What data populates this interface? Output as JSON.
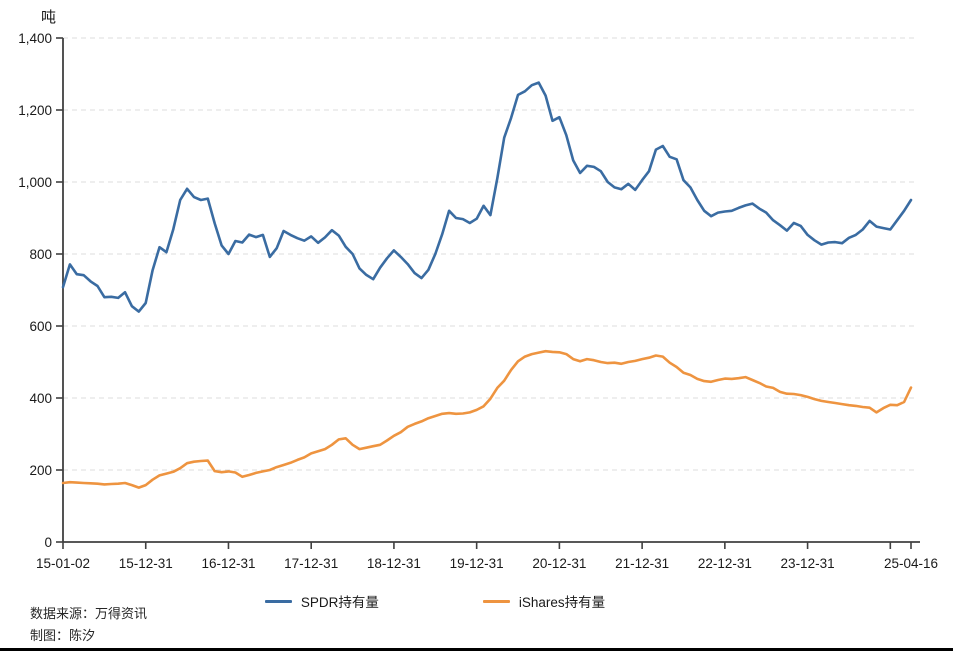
{
  "figure": {
    "unit": "吨",
    "source_line1": "数据来源：万得资讯",
    "source_line2": "制图：陈汐"
  },
  "legend": [
    {
      "label": "SPDR持有量",
      "color": "#3A6CA2"
    },
    {
      "label": "iShares持有量",
      "color": "#EE9440"
    }
  ],
  "chart_data": {
    "type": "line",
    "title": "",
    "xlabel": "",
    "ylabel": "吨",
    "ylim": [
      0,
      1400
    ],
    "grid": "horizontal-dashed",
    "legend_position": "bottom-center",
    "axis_color": "#404040",
    "grid_color": "#DCDCDC",
    "yticks": [
      {
        "label": "0",
        "value": 0
      },
      {
        "label": "200",
        "value": 200
      },
      {
        "label": "400",
        "value": 400
      },
      {
        "label": "600",
        "value": 600
      },
      {
        "label": "800",
        "value": 800
      },
      {
        "label": "1,000",
        "value": 1000
      },
      {
        "label": "1,200",
        "value": 1200
      },
      {
        "label": "1,400",
        "value": 1400
      }
    ],
    "xticks": [
      {
        "label": "15-01-02",
        "pos": 0
      },
      {
        "label": "15-12-31",
        "pos": 12
      },
      {
        "label": "16-12-31",
        "pos": 24
      },
      {
        "label": "17-12-31",
        "pos": 36
      },
      {
        "label": "18-12-31",
        "pos": 48
      },
      {
        "label": "19-12-31",
        "pos": 60
      },
      {
        "label": "20-12-31",
        "pos": 72
      },
      {
        "label": "21-12-31",
        "pos": 84
      },
      {
        "label": "22-12-31",
        "pos": 96
      },
      {
        "label": "23-12-31",
        "pos": 108
      },
      {
        "label": "",
        "pos": 120
      },
      {
        "label": "25-04-16",
        "pos": 123
      }
    ],
    "x": [
      "15-01",
      "15-02",
      "15-03",
      "15-04",
      "15-05",
      "15-06",
      "15-07",
      "15-08",
      "15-09",
      "15-10",
      "15-11",
      "15-12",
      "16-01",
      "16-02",
      "16-03",
      "16-04",
      "16-05",
      "16-06",
      "16-07",
      "16-08",
      "16-09",
      "16-10",
      "16-11",
      "16-12",
      "17-01",
      "17-02",
      "17-03",
      "17-04",
      "17-05",
      "17-06",
      "17-07",
      "17-08",
      "17-09",
      "17-10",
      "17-11",
      "17-12",
      "18-01",
      "18-02",
      "18-03",
      "18-04",
      "18-05",
      "18-06",
      "18-07",
      "18-08",
      "18-09",
      "18-10",
      "18-11",
      "18-12",
      "19-01",
      "19-02",
      "19-03",
      "19-04",
      "19-05",
      "19-06",
      "19-07",
      "19-08",
      "19-09",
      "19-10",
      "19-11",
      "19-12",
      "20-01",
      "20-02",
      "20-03",
      "20-04",
      "20-05",
      "20-06",
      "20-07",
      "20-08",
      "20-09",
      "20-10",
      "20-11",
      "20-12",
      "21-01",
      "21-02",
      "21-03",
      "21-04",
      "21-05",
      "21-06",
      "21-07",
      "21-08",
      "21-09",
      "21-10",
      "21-11",
      "21-12",
      "22-01",
      "22-02",
      "22-03",
      "22-04",
      "22-05",
      "22-06",
      "22-07",
      "22-08",
      "22-09",
      "22-10",
      "22-11",
      "22-12",
      "23-01",
      "23-02",
      "23-03",
      "23-04",
      "23-05",
      "23-06",
      "23-07",
      "23-08",
      "23-09",
      "23-10",
      "23-11",
      "23-12",
      "24-01",
      "24-02",
      "24-03",
      "24-04",
      "24-05",
      "24-06",
      "24-07",
      "24-08",
      "24-09",
      "24-10",
      "24-11",
      "24-12",
      "25-01",
      "25-02",
      "25-03",
      "25-04-16"
    ],
    "series": [
      {
        "name": "SPDR持有量",
        "color": "#3A6CA2",
        "values": [
          708,
          771,
          744,
          741,
          724,
          711,
          680,
          681,
          678,
          694,
          655,
          640,
          664,
          755,
          819,
          805,
          869,
          950,
          981,
          958,
          950,
          954,
          885,
          824,
          800,
          836,
          832,
          854,
          847,
          853,
          792,
          816,
          864,
          853,
          844,
          837,
          849,
          831,
          846,
          866,
          851,
          820,
          800,
          760,
          742,
          730,
          762,
          788,
          810,
          792,
          772,
          747,
          733,
          756,
          800,
          855,
          920,
          900,
          897,
          886,
          898,
          934,
          908,
          1010,
          1123,
          1178,
          1242,
          1252,
          1269,
          1276,
          1240,
          1170,
          1180,
          1130,
          1060,
          1025,
          1045,
          1042,
          1030,
          1000,
          985,
          980,
          995,
          978,
          1005,
          1030,
          1090,
          1100,
          1070,
          1063,
          1005,
          985,
          950,
          920,
          905,
          915,
          918,
          920,
          928,
          935,
          940,
          926,
          915,
          894,
          880,
          865,
          886,
          878,
          853,
          838,
          826,
          832,
          833,
          830,
          845,
          853,
          868,
          892,
          876,
          872,
          868,
          894,
          920,
          950
        ]
      },
      {
        "name": "iShares持有量",
        "color": "#EE9440",
        "values": [
          164,
          166,
          165,
          164,
          163,
          162,
          160,
          161,
          162,
          164,
          158,
          151,
          158,
          173,
          185,
          190,
          195,
          205,
          219,
          223,
          225,
          226,
          197,
          194,
          196,
          193,
          181,
          186,
          192,
          196,
          200,
          208,
          214,
          220,
          228,
          235,
          246,
          252,
          258,
          270,
          285,
          288,
          270,
          258,
          262,
          266,
          270,
          282,
          295,
          305,
          320,
          328,
          335,
          344,
          350,
          356,
          358,
          356,
          357,
          360,
          367,
          377,
          398,
          428,
          448,
          478,
          502,
          515,
          522,
          526,
          530,
          528,
          527,
          522,
          508,
          502,
          508,
          505,
          500,
          497,
          498,
          495,
          500,
          503,
          508,
          512,
          518,
          515,
          498,
          486,
          470,
          464,
          453,
          447,
          445,
          450,
          454,
          453,
          455,
          458,
          450,
          442,
          432,
          428,
          417,
          412,
          411,
          408,
          403,
          397,
          392,
          389,
          386,
          383,
          380,
          378,
          375,
          373,
          360,
          372,
          381,
          380,
          389,
          429
        ]
      }
    ]
  }
}
